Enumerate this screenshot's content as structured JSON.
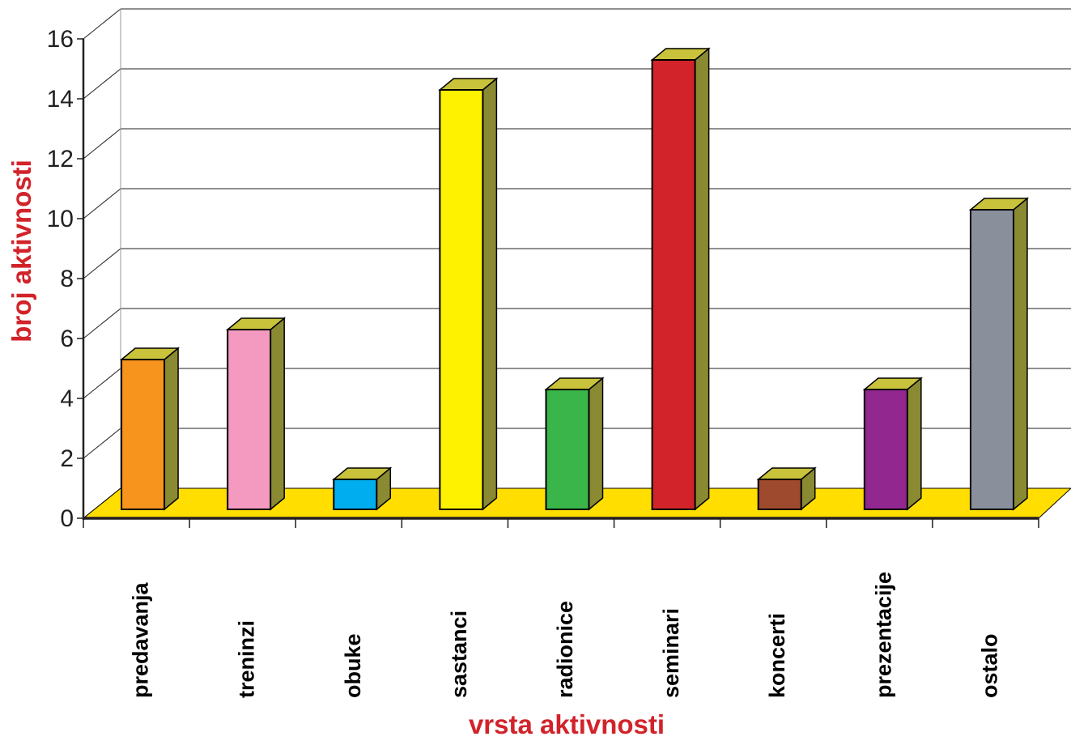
{
  "chart_data": {
    "type": "bar",
    "style": "3d-column",
    "categories": [
      "predavanja",
      "treninzi",
      "obuke",
      "sastanci",
      "radionice",
      "seminari",
      "koncerti",
      "prezentacije",
      "ostalo"
    ],
    "values": [
      5,
      6,
      1,
      14,
      4,
      15,
      1,
      4,
      10
    ],
    "bar_colors": [
      "#f7941d",
      "#f49ac1",
      "#00aeef",
      "#fff200",
      "#39b54a",
      "#d2232a",
      "#9e4a2e",
      "#92278f",
      "#8a8f9c"
    ],
    "title": "",
    "xlabel": "vrsta aktivnosti",
    "ylabel": "broj aktivnosti",
    "ylim": [
      0,
      16
    ],
    "yticks": [
      "0",
      "2",
      "4",
      "6",
      "8",
      "10",
      "12",
      "14",
      "16"
    ],
    "grid": true,
    "legend": "none",
    "colors": {
      "axis_title": "#d2232a",
      "floor": "#ffde00",
      "bar_side": "#8a8a33",
      "bar_top": "#c8c33a",
      "grid": "#231f20"
    }
  }
}
